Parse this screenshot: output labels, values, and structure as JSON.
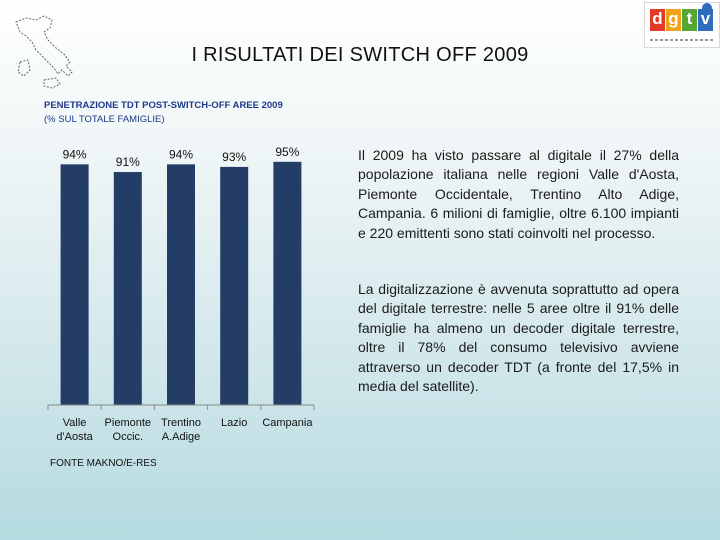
{
  "header": {
    "title": "I RISULTATI DEI SWITCH OFF 2009",
    "logo": {
      "letters": [
        "d",
        "g",
        "t",
        "v"
      ],
      "colors": [
        "#e23a25",
        "#f0a21a",
        "#55a633",
        "#2f6bbf"
      ]
    }
  },
  "chart_heading": {
    "line1": "PENETRAZIONE TDT POST-SWITCH-OFF AREE 2009",
    "line2": "(% SUL TOTALE FAMIGLIE)"
  },
  "chart_data": {
    "type": "bar",
    "categories": [
      [
        "Valle",
        "d'Aosta"
      ],
      [
        "Piemonte",
        "Occic."
      ],
      [
        "Trentino",
        "A.Adige"
      ],
      [
        "Lazio"
      ],
      [
        "Campania"
      ]
    ],
    "values": [
      94,
      91,
      94,
      93,
      95
    ],
    "value_labels": [
      "94%",
      "91%",
      "94%",
      "93%",
      "95%"
    ],
    "ylim": [
      0,
      100
    ],
    "bar_color": "#243d66",
    "grid": false
  },
  "text": {
    "paragraph1": "Il 2009 ha visto passare al digitale il 27% della popolazione italiana nelle regioni Valle d'Aosta, Piemonte Occidentale, Trentino Alto Adige, Campania. 6 milioni di famiglie, oltre 6.100 impianti e 220 emittenti sono stati coinvolti nel processo.",
    "paragraph2": "La digitalizzazione è avvenuta soprattutto ad opera del digitale terrestre: nelle 5 aree oltre il 91% delle famiglie ha almeno un decoder digitale terrestre, oltre il 78% del consumo televisivo avviene attraverso un decoder TDT (a fronte del 17,5% in media del satellite)."
  },
  "footer": {
    "source": "FONTE MAKNO/E-RES"
  }
}
